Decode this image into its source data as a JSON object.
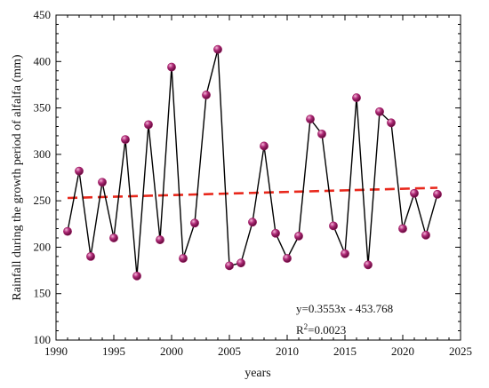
{
  "chart_data": {
    "type": "line",
    "title": "",
    "xlabel": "years",
    "ylabel": "Rainfall during the growth period of alfalfa (mm)",
    "xlim": [
      1990,
      2025
    ],
    "ylim": [
      100,
      450
    ],
    "xticks": [
      1990,
      1995,
      2000,
      2005,
      2010,
      2015,
      2020,
      2025
    ],
    "yticks": [
      100,
      150,
      200,
      250,
      300,
      350,
      400,
      450
    ],
    "grid": false,
    "legend": "none",
    "series": [
      {
        "x": [
          1991,
          1992,
          1993,
          1994,
          1995,
          1996,
          1997,
          1998,
          1999,
          2000,
          2001,
          2002,
          2003,
          2004,
          2005,
          2006,
          2007,
          2008,
          2009,
          2010,
          2011,
          2012,
          2013,
          2014,
          2015,
          2016,
          2017,
          2018,
          2019,
          2020,
          2021,
          2022,
          2023
        ],
        "values": [
          217,
          282,
          190,
          270,
          210,
          316,
          169,
          332,
          208,
          394,
          188,
          226,
          364,
          413,
          180,
          183,
          227,
          309,
          215,
          188,
          212,
          338,
          322,
          223,
          193,
          361,
          181,
          346,
          334,
          220,
          258,
          213,
          257
        ],
        "color": "#000000",
        "marker_color": "#9b1860"
      }
    ],
    "trendline": {
      "x": [
        1991,
        2023
      ],
      "y": [
        253,
        264
      ],
      "color": "#e8281c",
      "style": "dashed"
    },
    "annotations": {
      "equation": "y=0.3553x - 453.768",
      "r2_prefix": "R",
      "r2_sup": "2",
      "r2_value": "=0.0023"
    }
  }
}
